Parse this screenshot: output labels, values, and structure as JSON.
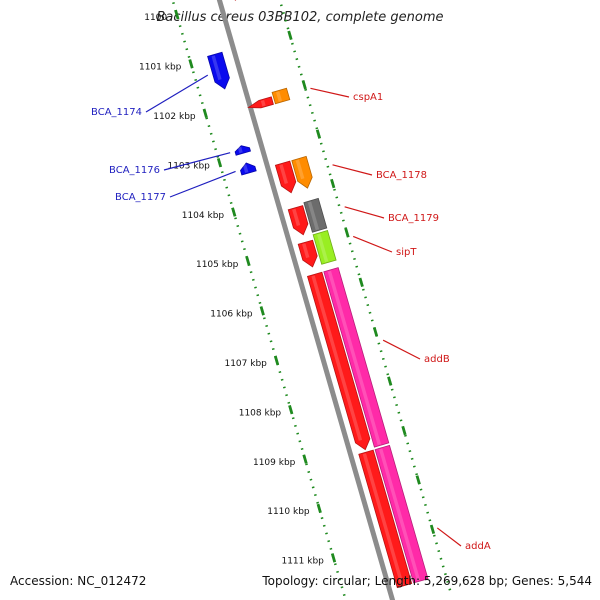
{
  "title": "Bacillus cereus 03BB102, complete genome",
  "footer": {
    "accession": "Accession: NC_012472",
    "summary": "Topology: circular; Length: 5,269,628 bp; Genes: 5,544"
  },
  "colors": {
    "background": "#ffffff",
    "backbone": "#8c8c8c",
    "ticks": "#1f8a1f",
    "tick_label": "#111111",
    "left_labels": "#1f1fbf",
    "right_labels": "#d01818"
  },
  "scale_ticks": [
    {
      "label": "1100"
    },
    {
      "label": "1101 kbp"
    },
    {
      "label": "1102 kbp"
    },
    {
      "label": "1103 kbp"
    },
    {
      "label": "1104 kbp"
    },
    {
      "label": "1105 kbp"
    },
    {
      "label": "1106 kbp"
    },
    {
      "label": "1107 kbp"
    },
    {
      "label": "1108 kbp"
    },
    {
      "label": "1109 kbp"
    },
    {
      "label": "1110 kbp"
    },
    {
      "label": "1111 kbp"
    }
  ],
  "genes": [
    {
      "name": "",
      "strand": "forward",
      "lane": "inner",
      "color": "#ff1a1a",
      "start_kbp": 1099.75,
      "end_kbp": 1100.05,
      "arrow": "down"
    },
    {
      "name": "",
      "strand": "forward",
      "lane": "outer",
      "color": "#33e6e6",
      "start_kbp": 1099.75,
      "end_kbp": 1100.05,
      "arrow": "none"
    },
    {
      "name": "BCA_1174",
      "strand": "reverse",
      "lane": "outer",
      "color": "#0a0aee",
      "start_kbp": 1100.95,
      "end_kbp": 1101.65,
      "arrow": "down"
    },
    {
      "name": "cspA1",
      "strand": "forward",
      "lane": "inner",
      "color": "#ff1a1a",
      "start_kbp": 1102.05,
      "end_kbp": 1102.2,
      "arrow": "left"
    },
    {
      "name": "",
      "strand": "forward",
      "lane": "outer",
      "color": "#ff8c00",
      "start_kbp": 1101.97,
      "end_kbp": 1102.2,
      "arrow": "none"
    },
    {
      "name": "BCA_1176",
      "strand": "reverse",
      "lane": "outer",
      "color": "#0a0aee",
      "start_kbp": 1102.8,
      "end_kbp": 1102.95,
      "arrow": "up"
    },
    {
      "name": "BCA_1177",
      "strand": "reverse",
      "lane": "outer",
      "color": "#0a0aee",
      "start_kbp": 1103.15,
      "end_kbp": 1103.35,
      "arrow": "up"
    },
    {
      "name": "BCA_1178",
      "strand": "forward",
      "lane": "inner",
      "color": "#ff1a1a",
      "start_kbp": 1103.35,
      "end_kbp": 1103.95,
      "arrow": "down"
    },
    {
      "name": "",
      "strand": "forward",
      "lane": "outer",
      "color": "#ff8c00",
      "start_kbp": 1103.35,
      "end_kbp": 1103.95,
      "arrow": "down"
    },
    {
      "name": "BCA_1179",
      "strand": "forward",
      "lane": "inner",
      "color": "#ff1a1a",
      "start_kbp": 1104.25,
      "end_kbp": 1104.8,
      "arrow": "down"
    },
    {
      "name": "",
      "strand": "forward",
      "lane": "outer",
      "color": "#6c6c6c",
      "start_kbp": 1104.2,
      "end_kbp": 1104.8,
      "arrow": "none"
    },
    {
      "name": "sipT",
      "strand": "forward",
      "lane": "inner",
      "color": "#ff1a1a",
      "start_kbp": 1104.95,
      "end_kbp": 1105.45,
      "arrow": "down"
    },
    {
      "name": "",
      "strand": "forward",
      "lane": "outer",
      "color": "#99ee22",
      "start_kbp": 1104.85,
      "end_kbp": 1105.45,
      "arrow": "none"
    },
    {
      "name": "addB",
      "strand": "forward",
      "lane": "inner",
      "color": "#ff1a1a",
      "start_kbp": 1105.6,
      "end_kbp": 1109.15,
      "arrow": "down"
    },
    {
      "name": "",
      "strand": "forward",
      "lane": "outer",
      "color": "#ff2aa8",
      "start_kbp": 1105.6,
      "end_kbp": 1109.15,
      "arrow": "none"
    },
    {
      "name": "addA",
      "strand": "forward",
      "lane": "inner",
      "color": "#ff1a1a",
      "start_kbp": 1109.2,
      "end_kbp": 1111.9,
      "arrow": "none"
    },
    {
      "name": "",
      "strand": "forward",
      "lane": "outer",
      "color": "#ff2aa8",
      "start_kbp": 1109.2,
      "end_kbp": 1111.9,
      "arrow": "none"
    }
  ],
  "gene_labels": [
    {
      "name": "BCA_1174",
      "side": "left",
      "gene_kbp": 1101.3
    },
    {
      "name": "BCA_1176",
      "side": "left",
      "gene_kbp": 1102.87
    },
    {
      "name": "BCA_1177",
      "side": "left",
      "gene_kbp": 1103.25
    },
    {
      "name": "cspA1",
      "side": "right",
      "gene_kbp": 1102.1
    },
    {
      "name": "BCA_1178",
      "side": "right",
      "gene_kbp": 1103.65
    },
    {
      "name": "BCA_1179",
      "side": "right",
      "gene_kbp": 1104.5
    },
    {
      "name": "sipT",
      "side": "right",
      "gene_kbp": 1105.1
    },
    {
      "name": "addB",
      "side": "right",
      "gene_kbp": 1107.2
    },
    {
      "name": "addA",
      "side": "right",
      "gene_kbp": 1111.0
    }
  ]
}
